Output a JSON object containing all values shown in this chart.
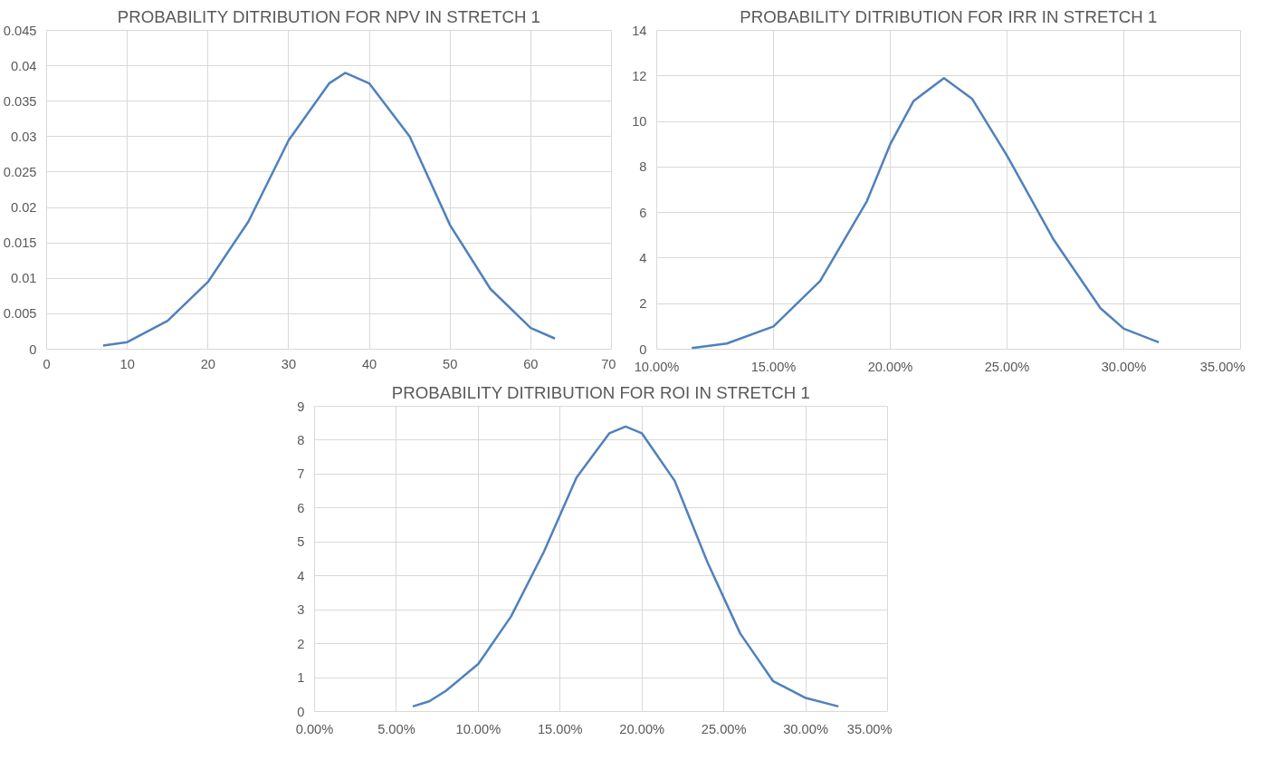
{
  "chart_data": [
    {
      "type": "line",
      "title": "PROBABILITY DITRIBUTION FOR NPV IN STRETCH 1",
      "grid": true,
      "marker": "none",
      "line_style": "solid",
      "xlim": [
        0,
        70
      ],
      "xticks": [
        0,
        10,
        20,
        30,
        40,
        50,
        60,
        70
      ],
      "ylim": [
        0,
        0.045
      ],
      "yticks": [
        0,
        0.005,
        0.01,
        0.015,
        0.02,
        0.025,
        0.03,
        0.035,
        0.04,
        0.045
      ],
      "series": [
        {
          "color": "#4f81bd",
          "x": [
            7,
            10,
            15,
            20,
            25,
            30,
            35,
            37,
            40,
            45,
            50,
            55,
            60,
            63
          ],
          "values": [
            0.0005,
            0.001,
            0.004,
            0.0095,
            0.018,
            0.0295,
            0.0375,
            0.039,
            0.0375,
            0.03,
            0.0175,
            0.0085,
            0.003,
            0.0015
          ]
        }
      ]
    },
    {
      "type": "line",
      "title": "PROBABILITY DITRIBUTION FOR IRR IN STRETCH 1",
      "grid": true,
      "marker": "none",
      "line_style": "solid",
      "xlim": [
        0.1,
        0.35
      ],
      "xticks": [
        {
          "value": 0.1,
          "label": "10.00%"
        },
        {
          "value": 0.15,
          "label": "15.00%"
        },
        {
          "value": 0.2,
          "label": "20.00%"
        },
        {
          "value": 0.25,
          "label": "25.00%"
        },
        {
          "value": 0.3,
          "label": "30.00%"
        },
        {
          "value": 0.35,
          "label": "35.00%"
        }
      ],
      "ylim": [
        0,
        14
      ],
      "yticks": [
        0,
        2,
        4,
        6,
        8,
        10,
        12,
        14
      ],
      "series": [
        {
          "color": "#4f81bd",
          "x": [
            0.115,
            0.13,
            0.15,
            0.17,
            0.19,
            0.2,
            0.21,
            0.223,
            0.235,
            0.25,
            0.27,
            0.29,
            0.3,
            0.315
          ],
          "values": [
            0.05,
            0.25,
            1.0,
            3.0,
            6.5,
            9.0,
            10.9,
            11.9,
            11.0,
            8.5,
            4.8,
            1.8,
            0.9,
            0.3
          ]
        }
      ]
    },
    {
      "type": "line",
      "title": "PROBABILITY DITRIBUTION FOR ROI IN STRETCH 1",
      "grid": true,
      "marker": "none",
      "line_style": "solid",
      "xlim": [
        0,
        0.35
      ],
      "xticks": [
        {
          "value": 0,
          "label": "0.00%"
        },
        {
          "value": 0.05,
          "label": "5.00%"
        },
        {
          "value": 0.1,
          "label": "10.00%"
        },
        {
          "value": 0.15,
          "label": "15.00%"
        },
        {
          "value": 0.2,
          "label": "20.00%"
        },
        {
          "value": 0.25,
          "label": "25.00%"
        },
        {
          "value": 0.3,
          "label": "30.00%"
        },
        {
          "value": 0.35,
          "label": "35.00%"
        }
      ],
      "ylim": [
        0,
        9
      ],
      "yticks": [
        0,
        1,
        2,
        3,
        4,
        5,
        6,
        7,
        8,
        9
      ],
      "series": [
        {
          "color": "#4f81bd",
          "x": [
            0.06,
            0.07,
            0.08,
            0.1,
            0.12,
            0.14,
            0.16,
            0.18,
            0.19,
            0.2,
            0.22,
            0.24,
            0.26,
            0.28,
            0.3,
            0.32
          ],
          "values": [
            0.15,
            0.3,
            0.6,
            1.4,
            2.8,
            4.7,
            6.9,
            8.2,
            8.4,
            8.2,
            6.8,
            4.4,
            2.3,
            0.9,
            0.4,
            0.15
          ]
        }
      ]
    }
  ]
}
